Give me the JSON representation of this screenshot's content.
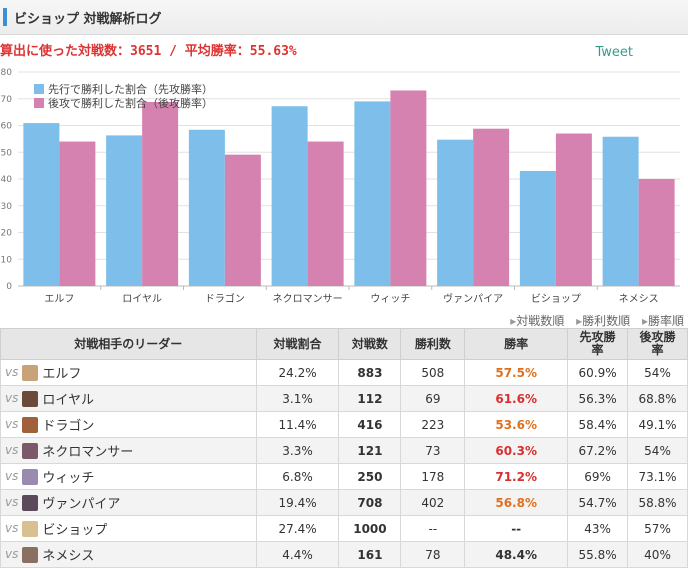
{
  "header": {
    "title": "ビショップ 対戦解析ログ"
  },
  "summary": "算出に使った対戦数：3651 / 平均勝率：55.63%",
  "tweet_label": "Tweet",
  "colors": {
    "first": "#7dbfea",
    "second": "#d682b0",
    "rate_high": "#e07020",
    "rate_top": "#d83030"
  },
  "chart_data": {
    "type": "bar",
    "categories": [
      "エルフ",
      "ロイヤル",
      "ドラゴン",
      "ネクロマンサー",
      "ウィッチ",
      "ヴァンパイア",
      "ビショップ",
      "ネメシス"
    ],
    "series": [
      {
        "name": "先行で勝利した割合（先攻勝率）",
        "values": [
          60.9,
          56.3,
          58.4,
          67.2,
          69,
          54.7,
          43,
          55.8
        ]
      },
      {
        "name": "後攻で勝利した割合（後攻勝率）",
        "values": [
          54,
          68.8,
          49.1,
          54,
          73.1,
          58.8,
          57,
          40
        ]
      }
    ],
    "yticks": [
      0,
      10,
      20,
      30,
      40,
      50,
      60,
      70,
      80
    ],
    "ylim": [
      0,
      80
    ],
    "legend": "top-left",
    "grid": true
  },
  "sort_links": [
    "対戦数順",
    "勝利数順",
    "勝率順"
  ],
  "table": {
    "headers": [
      "対戦相手のリーダー",
      "対戦割合",
      "対戦数",
      "勝利数",
      "勝率",
      "先攻勝\n率",
      "後攻勝\n率"
    ],
    "vs": "vs",
    "rows": [
      {
        "leader": "エルフ",
        "share": "24.2%",
        "games": "883",
        "wins": "508",
        "rate": "57.5%",
        "first": "60.9%",
        "second": "54%",
        "avatar": "#c9a27a"
      },
      {
        "leader": "ロイヤル",
        "share": "3.1%",
        "games": "112",
        "wins": "69",
        "rate": "61.6%",
        "first": "56.3%",
        "second": "68.8%",
        "avatar": "#6b4a3a"
      },
      {
        "leader": "ドラゴン",
        "share": "11.4%",
        "games": "416",
        "wins": "223",
        "rate": "53.6%",
        "first": "58.4%",
        "second": "49.1%",
        "avatar": "#a0603a"
      },
      {
        "leader": "ネクロマンサー",
        "share": "3.3%",
        "games": "121",
        "wins": "73",
        "rate": "60.3%",
        "first": "67.2%",
        "second": "54%",
        "avatar": "#7a5a6a"
      },
      {
        "leader": "ウィッチ",
        "share": "6.8%",
        "games": "250",
        "wins": "178",
        "rate": "71.2%",
        "first": "69%",
        "second": "73.1%",
        "avatar": "#9a8ab0"
      },
      {
        "leader": "ヴァンパイア",
        "share": "19.4%",
        "games": "708",
        "wins": "402",
        "rate": "56.8%",
        "first": "54.7%",
        "second": "58.8%",
        "avatar": "#5a4a5a"
      },
      {
        "leader": "ビショップ",
        "share": "27.4%",
        "games": "1000",
        "wins": "--",
        "rate": "--",
        "first": "43%",
        "second": "57%",
        "avatar": "#d8c090"
      },
      {
        "leader": "ネメシス",
        "share": "4.4%",
        "games": "161",
        "wins": "78",
        "rate": "48.4%",
        "first": "55.8%",
        "second": "40%",
        "avatar": "#8a7060"
      }
    ]
  }
}
